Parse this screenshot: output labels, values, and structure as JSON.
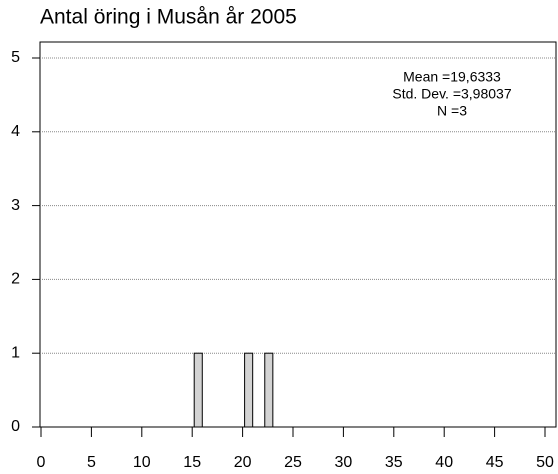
{
  "chart_data": {
    "type": "histogram",
    "title": "Antal öring i Musån år 2005",
    "annotations": [
      "Mean =19,6333",
      "Std. Dev. =3,98037",
      "N =3"
    ],
    "bins": [
      15,
      16,
      17,
      18,
      19,
      20,
      21,
      22,
      23
    ],
    "values": [
      1,
      0,
      0,
      0,
      0,
      1,
      0,
      1
    ],
    "color": "#d3d3d3",
    "xlim": [
      0,
      50
    ],
    "xticks": [
      0,
      5,
      10,
      15,
      20,
      25,
      30,
      35,
      40,
      45,
      50
    ],
    "ylim": [
      0,
      5
    ],
    "yticks": [
      0,
      1,
      2,
      3,
      4,
      5
    ],
    "grid": true
  }
}
